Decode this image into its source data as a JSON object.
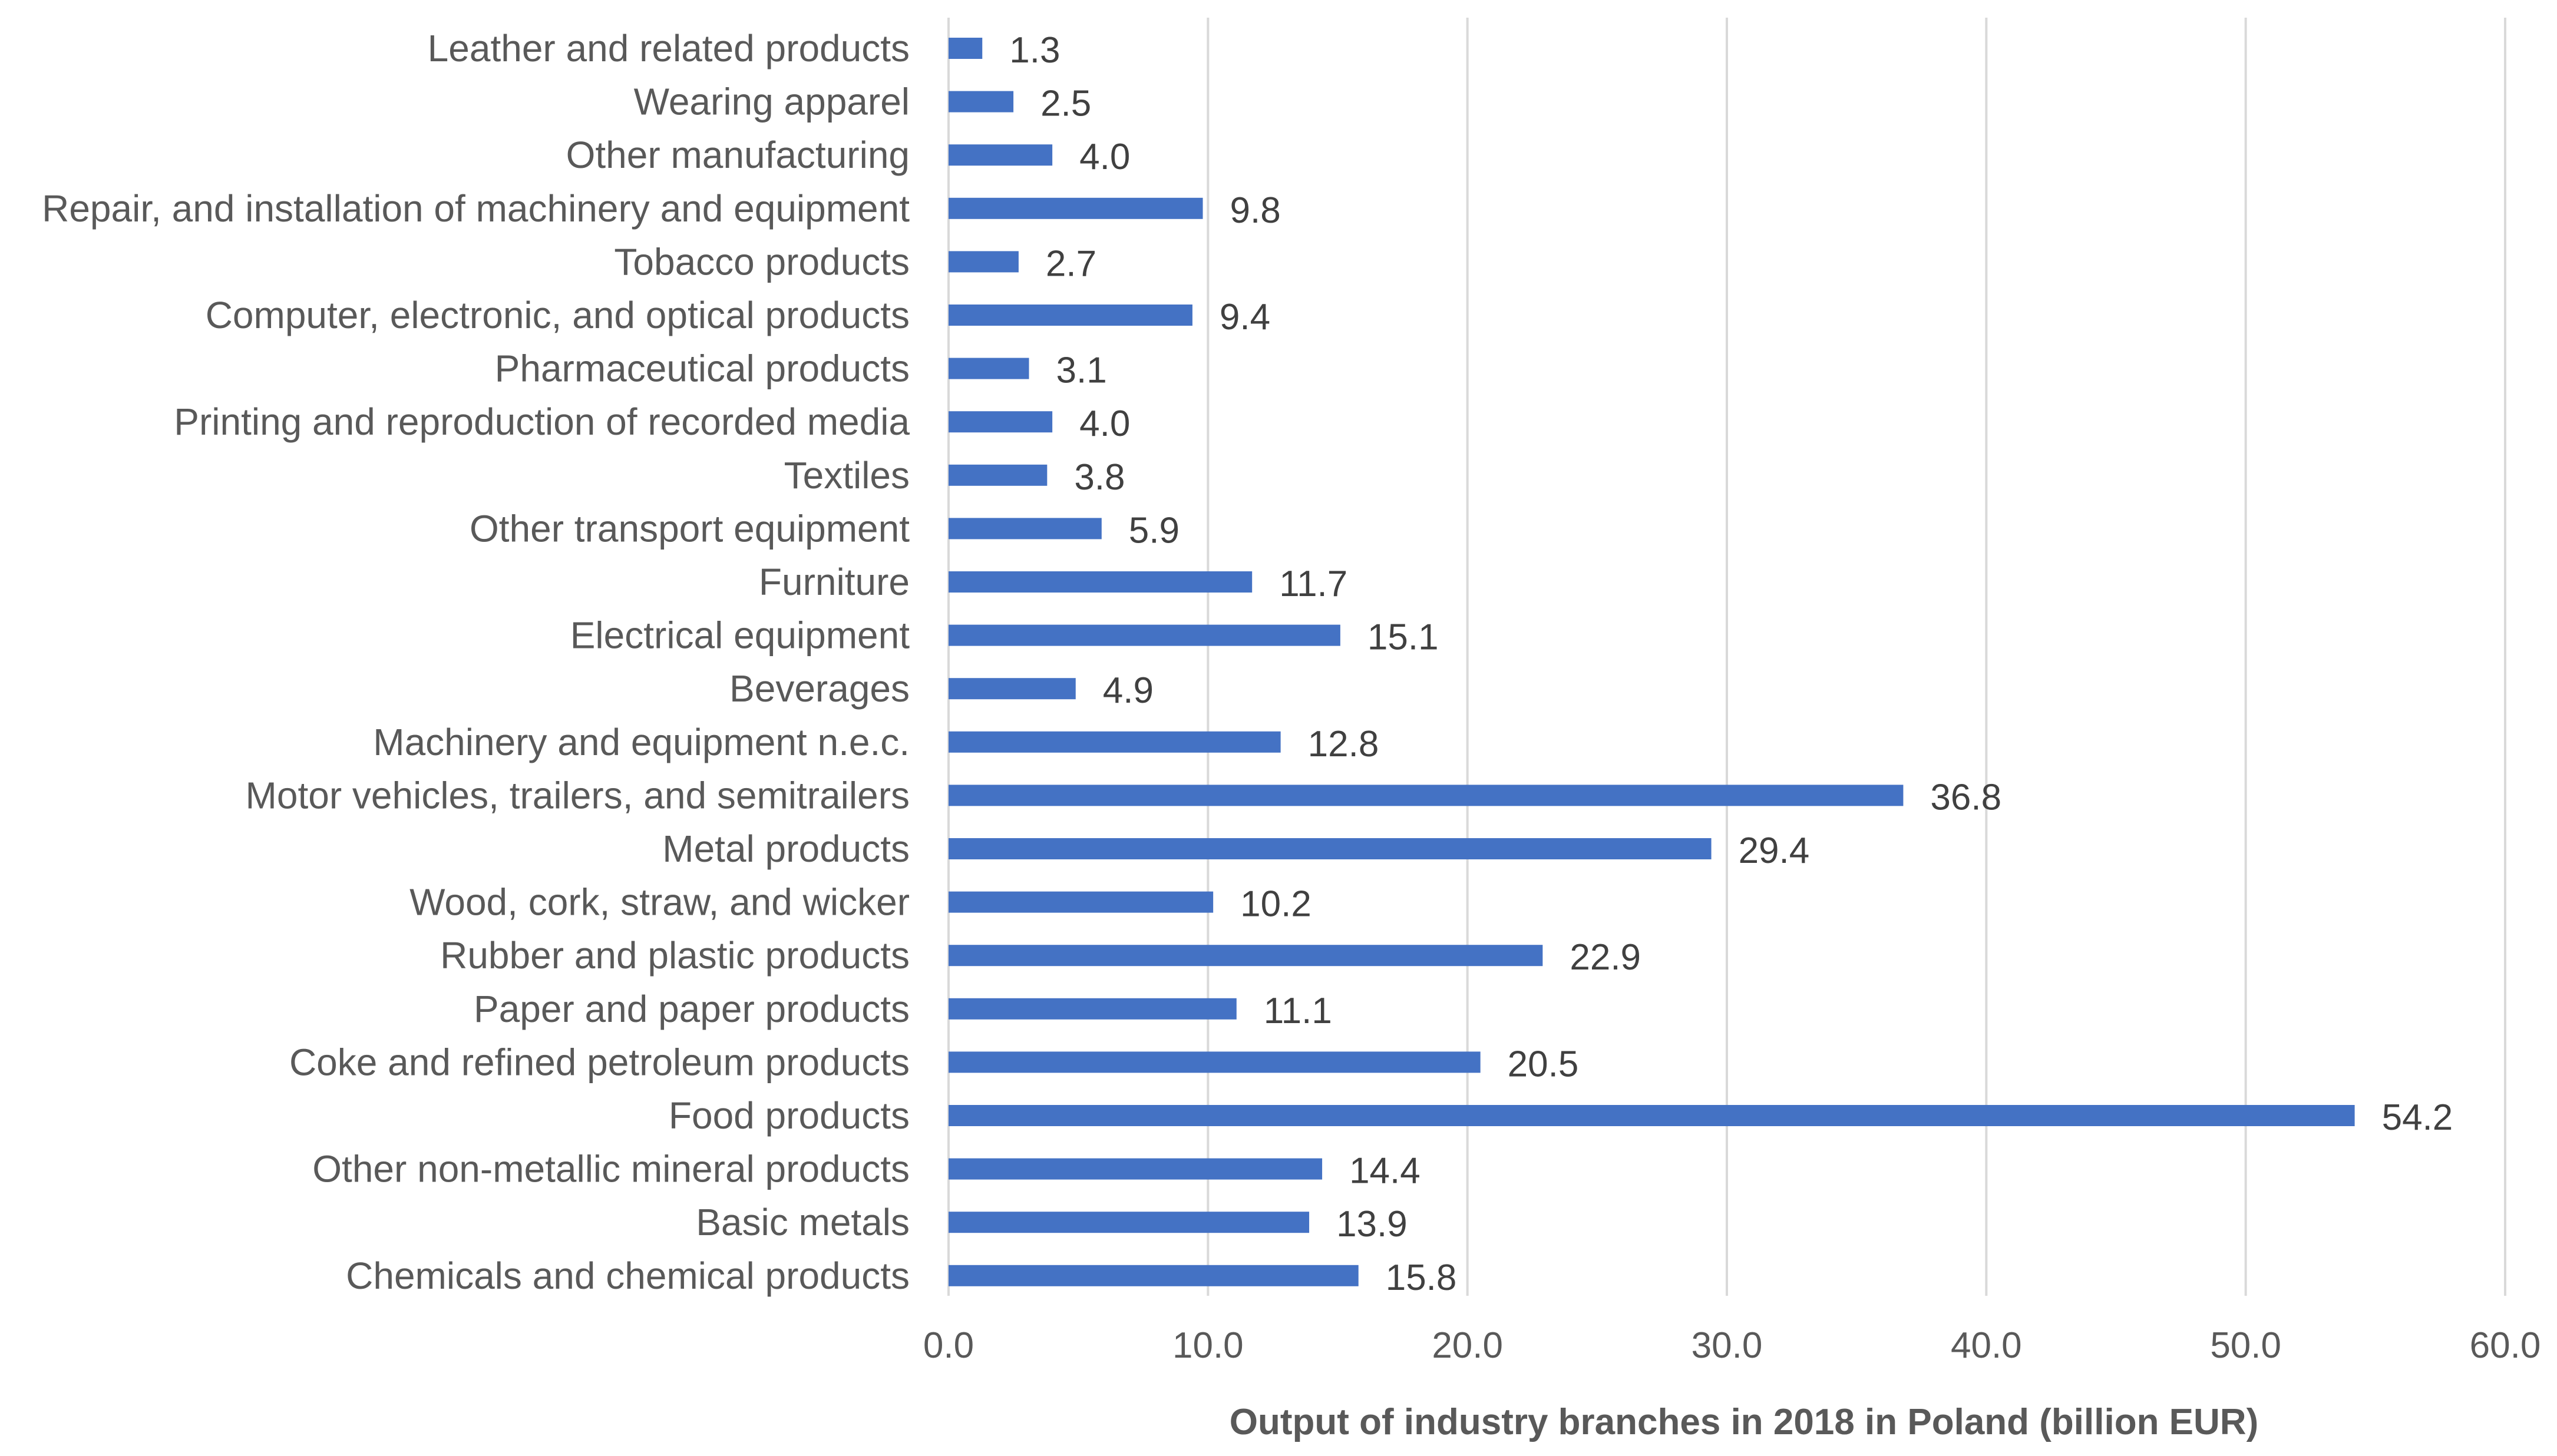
{
  "chart_data": {
    "type": "bar",
    "orientation": "horizontal",
    "categories": [
      "Leather and related products",
      "Wearing apparel",
      "Other manufacturing",
      "Repair, and installation of machinery and equipment",
      "Tobacco products",
      "Computer, electronic, and optical products",
      "Pharmaceutical products",
      "Printing and reproduction of recorded media",
      "Textiles",
      "Other transport equipment",
      "Furniture",
      "Electrical  equipment",
      "Beverages",
      "Machinery and equipment  n.e.c.",
      "Motor vehicles, trailers, and semitrailers",
      "Metal products",
      "Wood, cork, straw, and wicker",
      "Rubber and plastic products",
      "Paper and paper products",
      "Coke and refined petroleum products",
      "Food products",
      "Other non-metallic mineral products",
      "Basic metals",
      "Chemicals and chemical products"
    ],
    "values": [
      1.3,
      2.5,
      4.0,
      9.8,
      2.7,
      9.4,
      3.1,
      4.0,
      3.8,
      5.9,
      11.7,
      15.1,
      4.9,
      12.8,
      36.8,
      29.4,
      10.2,
      22.9,
      11.1,
      20.5,
      54.2,
      14.4,
      13.9,
      15.8
    ],
    "value_labels": [
      "1.3",
      "2.5",
      "4.0",
      "9.8",
      "2.7",
      "9.4",
      "3.1",
      "4.0",
      "3.8",
      "5.9",
      "11.7",
      "15.1",
      "4.9",
      "12.8",
      "36.8",
      "29.4",
      "10.2",
      "22.9",
      "11.1",
      "20.5",
      "54.2",
      "14.4",
      "13.9",
      "15.8"
    ],
    "title": "",
    "xlabel": "Output of industry branches in 2018 in Poland (billion EUR)",
    "ylabel": "",
    "xlim": [
      0,
      60
    ],
    "xticks": [
      0,
      10,
      20,
      30,
      40,
      50,
      60
    ],
    "xtick_labels": [
      "0.0",
      "10.0",
      "20.0",
      "30.0",
      "40.0",
      "50.0",
      "60.0"
    ],
    "grid": "vertical",
    "legend": "none",
    "bar_color": "#4472C4",
    "grid_color": "#D9D9D9"
  }
}
